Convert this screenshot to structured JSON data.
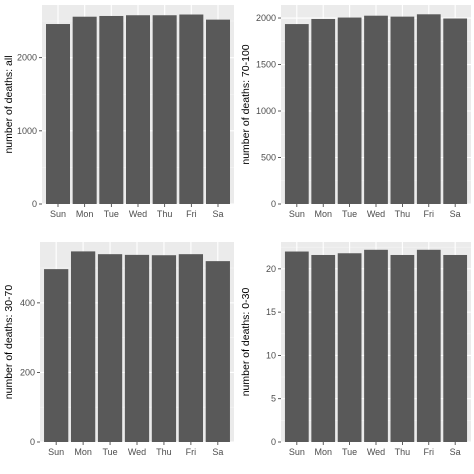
{
  "colors": {
    "panel_bg": "#ebebeb",
    "grid_major": "#ffffff",
    "grid_minor": "#f5f5f5",
    "bar": "#595959",
    "tick": "#4d4d4d",
    "axis_title": "#000000"
  },
  "chart_data": [
    {
      "type": "bar",
      "categories": [
        "Sun",
        "Mon",
        "Tue",
        "Wed",
        "Thu",
        "Fri",
        "Sa"
      ],
      "values": [
        2460,
        2560,
        2570,
        2580,
        2580,
        2590,
        2520
      ],
      "ylabel": "number of deaths: all",
      "yticks": [
        0,
        1000,
        2000
      ],
      "ylim": [
        0,
        2720
      ],
      "xlabel": "",
      "title": "",
      "grid": true,
      "legend": "none"
    },
    {
      "type": "bar",
      "categories": [
        "Sun",
        "Mon",
        "Tue",
        "Wed",
        "Thu",
        "Fri",
        "Sa"
      ],
      "values": [
        1935,
        1990,
        2005,
        2025,
        2015,
        2040,
        1995
      ],
      "ylabel": "number of deaths: 70-100",
      "yticks": [
        0,
        500,
        1000,
        1500,
        2000
      ],
      "ylim": [
        0,
        2140
      ],
      "xlabel": "",
      "title": "",
      "grid": true,
      "legend": "none"
    },
    {
      "type": "bar",
      "categories": [
        "Sun",
        "Mon",
        "Tue",
        "Wed",
        "Thu",
        "Fri",
        "Sa"
      ],
      "values": [
        497,
        548,
        540,
        538,
        537,
        540,
        520
      ],
      "ylabel": "number of deaths: 30-70",
      "yticks": [
        0,
        200,
        400
      ],
      "ylim": [
        0,
        575
      ],
      "xlabel": "",
      "title": "",
      "grid": true,
      "legend": "none"
    },
    {
      "type": "bar",
      "categories": [
        "Sun",
        "Mon",
        "Tue",
        "Wed",
        "Thu",
        "Fri",
        "Sa"
      ],
      "values": [
        22.0,
        21.6,
        21.8,
        22.2,
        21.6,
        22.2,
        21.6
      ],
      "ylabel": "number of deaths: 0-30",
      "yticks": [
        0,
        5,
        10,
        15,
        20
      ],
      "ylim": [
        0,
        23.1
      ],
      "xlabel": "",
      "title": "",
      "grid": true,
      "legend": "none"
    }
  ]
}
